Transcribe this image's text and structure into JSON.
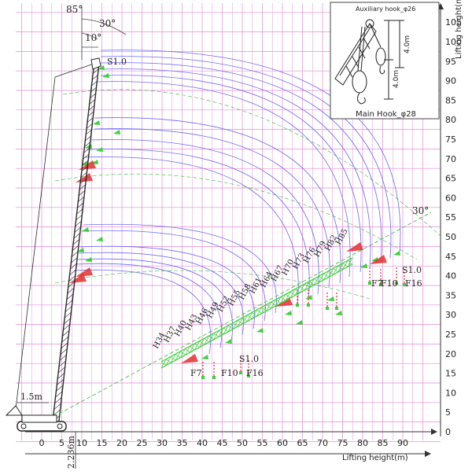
{
  "axes": {
    "x_label": "Lifting height(m)",
    "y_label": "Lifting height(m)",
    "x_ticks": [
      "0",
      "5",
      "10",
      "15",
      "20",
      "25",
      "30",
      "35",
      "40",
      "45",
      "50",
      "55",
      "60",
      "65",
      "70",
      "75",
      "80",
      "85",
      "90"
    ],
    "y_ticks": [
      "0",
      "5",
      "10",
      "15",
      "20",
      "25",
      "30",
      "35",
      "40",
      "45",
      "50",
      "55",
      "60",
      "65",
      "70",
      "75",
      "80",
      "85",
      "90",
      "95",
      "100",
      "105"
    ],
    "x_range": [
      -7,
      98
    ],
    "y_range": [
      -3,
      110
    ]
  },
  "angles": {
    "a85": "85°",
    "a30_top": "30°",
    "a10": "10°",
    "a30_right": "30°"
  },
  "dimensions": {
    "offset_1_5": "1.5m",
    "base_2_236": "2.236m"
  },
  "inset": {
    "aux_hook": "Auxiliary hook_φ26",
    "main_hook": "Main Hook_φ28",
    "dim_4_0a": "4.0m",
    "dim_4_0b": "4.0m"
  },
  "markers": {
    "s10_top": "S1.0",
    "s10_right": "S1.0",
    "s10_bottom": "S1.0",
    "f7_right": "F7",
    "f10_right": "F10",
    "f16_right": "F16",
    "f7_bottom": "F7",
    "f10_bottom": "F10",
    "f16_bottom": "F16"
  },
  "jib_labels": [
    "H34",
    "H37",
    "H40",
    "H43",
    "H46",
    "H49",
    "H52",
    "H55",
    "H58",
    "H61",
    "H64",
    "H67",
    "H70",
    "H73",
    "H76",
    "H79",
    "H82",
    "H85"
  ],
  "colors": {
    "grid": "#e58ad8",
    "arc": "#6b6bf0",
    "green": "#3bd13b",
    "red": "#e23030",
    "dash": "#2fbf2f",
    "boom": "#2a2a2a"
  }
}
